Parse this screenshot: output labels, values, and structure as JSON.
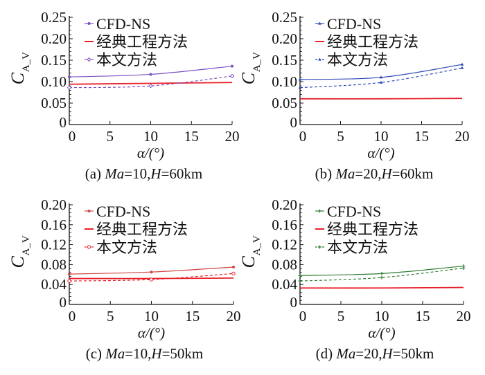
{
  "chart_data": [
    {
      "type": "line",
      "caption_prefix": "(a) ",
      "caption_ma": "Ma",
      "caption_mid": "=10,",
      "caption_h": "H",
      "caption_suffix": "=60km",
      "xlabel": "α/(°)",
      "ylabel_main": "C",
      "ylabel_sub": "A_V",
      "xlim": [
        0,
        20
      ],
      "ylim": [
        0,
        0.25
      ],
      "xticks": [
        "0",
        "5",
        "10",
        "15",
        "20"
      ],
      "yticks": [
        "0",
        "0.05",
        "0.10",
        "0.15",
        "0.20",
        "0.25"
      ],
      "ytick_values": [
        0,
        0.05,
        0.1,
        0.15,
        0.2,
        0.25
      ],
      "x": [
        0,
        10,
        20
      ],
      "legend": "top-left",
      "series": [
        {
          "name": "CFD-NS",
          "values": [
            0.111,
            0.117,
            0.136
          ],
          "color": "#7a4fc2",
          "dash": false,
          "marker": "dot"
        },
        {
          "name": "经典工程方法",
          "values": [
            0.094,
            0.096,
            0.098
          ],
          "color": "#e8202a",
          "dash": false,
          "marker": "none"
        },
        {
          "name": "本文方法",
          "values": [
            0.086,
            0.09,
            0.113
          ],
          "color": "#7a4fc2",
          "dash": true,
          "marker": "open-diamond"
        }
      ]
    },
    {
      "type": "line",
      "caption_prefix": "(b) ",
      "caption_ma": "Ma",
      "caption_mid": "=20,",
      "caption_h": "H",
      "caption_suffix": "=60km",
      "xlabel": "α/(°)",
      "ylabel_main": "C",
      "ylabel_sub": "A_V",
      "xlim": [
        0,
        20
      ],
      "ylim": [
        0,
        0.25
      ],
      "xticks": [
        "0",
        "5",
        "10",
        "15",
        "20"
      ],
      "yticks": [
        "0",
        "0.05",
        "0.10",
        "0.15",
        "0.20",
        "0.25"
      ],
      "ytick_values": [
        0,
        0.05,
        0.1,
        0.15,
        0.2,
        0.25
      ],
      "x": [
        0,
        10,
        20
      ],
      "legend": "top-left",
      "series": [
        {
          "name": "CFD-NS",
          "values": [
            0.105,
            0.11,
            0.14
          ],
          "color": "#2d48b8",
          "dash": false,
          "marker": "triangle"
        },
        {
          "name": "经典工程方法",
          "values": [
            0.06,
            0.06,
            0.061
          ],
          "color": "#e8202a",
          "dash": false,
          "marker": "none"
        },
        {
          "name": "本文方法",
          "values": [
            0.086,
            0.098,
            0.132
          ],
          "color": "#2d48b8",
          "dash": true,
          "marker": "triangle"
        }
      ]
    },
    {
      "type": "line",
      "caption_prefix": "(c) ",
      "caption_ma": "Ma",
      "caption_mid": "=10,",
      "caption_h": "H",
      "caption_suffix": "=50km",
      "xlabel": "α/(°)",
      "ylabel_main": "C",
      "ylabel_sub": "A_V",
      "xlim": [
        0,
        20
      ],
      "ylim": [
        0,
        0.2
      ],
      "xticks": [
        "0",
        "5",
        "10",
        "15",
        "20"
      ],
      "yticks": [
        "0",
        "0.04",
        "0.08",
        "0.12",
        "0.16",
        "0.20"
      ],
      "ytick_values": [
        0,
        0.04,
        0.08,
        0.12,
        0.16,
        0.2
      ],
      "x": [
        0,
        10,
        20
      ],
      "legend": "top-left",
      "series": [
        {
          "name": "CFD-NS",
          "values": [
            0.061,
            0.065,
            0.075
          ],
          "color": "#cf4545",
          "dash": false,
          "marker": "dot"
        },
        {
          "name": "经典工程方法",
          "values": [
            0.052,
            0.052,
            0.053
          ],
          "color": "#e8202a",
          "dash": false,
          "marker": "none"
        },
        {
          "name": "本文方法",
          "values": [
            0.047,
            0.05,
            0.062
          ],
          "color": "#e8202a",
          "dash": true,
          "marker": "open-circle"
        }
      ]
    },
    {
      "type": "line",
      "caption_prefix": "(d) ",
      "caption_ma": "Ma",
      "caption_mid": "=20,",
      "caption_h": "H",
      "caption_suffix": "=50km",
      "xlabel": "α/(°)",
      "ylabel_main": "C",
      "ylabel_sub": "A_V",
      "xlim": [
        0,
        20
      ],
      "ylim": [
        0,
        0.2
      ],
      "xticks": [
        "0",
        "5",
        "10",
        "15",
        "20"
      ],
      "yticks": [
        "0",
        "0.04",
        "0.08",
        "0.12",
        "0.16",
        "0.20"
      ],
      "ytick_values": [
        0,
        0.04,
        0.08,
        0.12,
        0.16,
        0.2
      ],
      "x": [
        0,
        10,
        20
      ],
      "legend": "top-left",
      "series": [
        {
          "name": "CFD-NS",
          "values": [
            0.058,
            0.062,
            0.077
          ],
          "color": "#2e7d32",
          "dash": false,
          "marker": "plus"
        },
        {
          "name": "经典工程方法",
          "values": [
            0.033,
            0.033,
            0.034
          ],
          "color": "#e8202a",
          "dash": false,
          "marker": "none"
        },
        {
          "name": "本文方法",
          "values": [
            0.047,
            0.054,
            0.073
          ],
          "color": "#2e7d32",
          "dash": true,
          "marker": "plus"
        }
      ]
    }
  ]
}
